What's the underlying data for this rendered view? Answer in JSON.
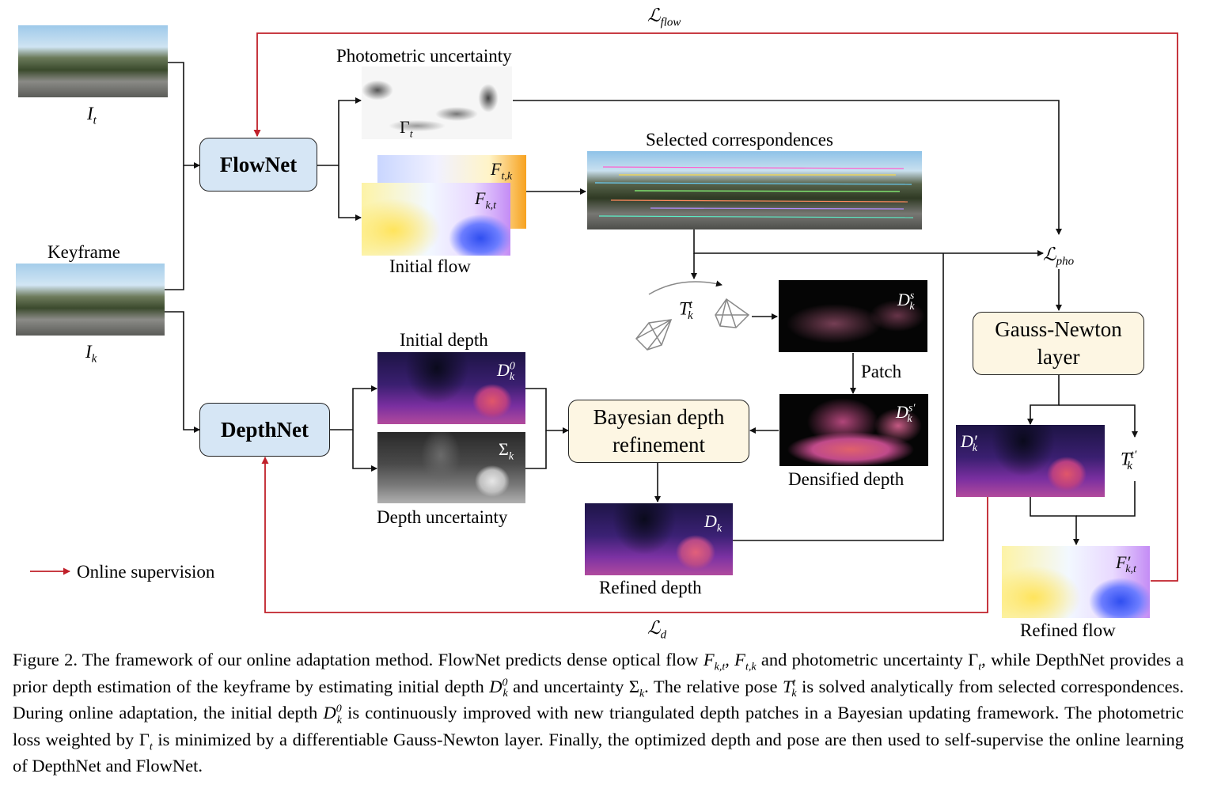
{
  "labels": {
    "it": "I",
    "it_sub": "t",
    "ik": "I",
    "ik_sub": "k",
    "keyframe": "Keyframe",
    "photometric_uncertainty": "Photometric uncertainty",
    "gamma_t": "Γ",
    "gamma_t_sub": "t",
    "selected_correspondences": "Selected correspondences",
    "initial_flow": "Initial flow",
    "f_tk": "F",
    "f_tk_sub": "t,k",
    "f_kt": "F",
    "f_kt_sub": "k,t",
    "initial_depth": "Initial depth",
    "d_k0": "D",
    "d_k0_sup": "0",
    "d_k0_sub": "k",
    "sigma_k": "Σ",
    "sigma_k_sub": "k",
    "depth_uncertainty": "Depth uncertainty",
    "t_kt": "T",
    "t_kt_sup": "t",
    "t_kt_sub": "k",
    "d_ks": "D",
    "d_ks_sup": "s",
    "d_ks_sub": "k",
    "patch": "Patch",
    "d_ks_prime": "D",
    "d_ks_prime_sup": "s′",
    "d_ks_prime_sub": "k",
    "densified_depth": "Densified depth",
    "d_k": "D",
    "d_k_sub": "k",
    "refined_depth": "Refined depth",
    "l_flow": "ℒ",
    "l_flow_sub": "flow",
    "l_pho": "ℒ",
    "l_pho_sub": "pho",
    "l_d": "ℒ",
    "l_d_sub": "d",
    "d_k_prime": "D′",
    "d_k_prime_sub": "k",
    "t_kt_prime": "T",
    "t_kt_prime_sup": "t′",
    "t_kt_prime_sub": "k",
    "f_kt_prime": "F′",
    "f_kt_prime_sub": "k,t",
    "refined_flow": "Refined flow",
    "online_supervision": "Online supervision"
  },
  "boxes": {
    "flownet": "FlowNet",
    "depthnet": "DepthNet",
    "gauss_newton": "Gauss-Newton layer",
    "bayesian": "Bayesian depth refinement"
  },
  "caption": {
    "p1": "Figure 2. The framework of our online adaptation method. FlowNet predicts dense optical flow ",
    "p2": " and photometric uncertainty ",
    "p3": ", while DepthNet provides a prior depth estimation of the keyframe by estimating initial depth ",
    "p4": " and uncertainty ",
    "p5": ". The relative pose ",
    "p6": " is solved analytically from selected correspondences. During online adaptation, the initial depth ",
    "p7": " is continuously improved with new triangulated depth patches in a Bayesian updating framework. The photometric loss weighted by ",
    "p8": " is minimized by a differentiable Gauss-Newton layer. Finally, the optimized depth and pose are then used to self-supervise the online learning of DepthNet and FlowNet."
  },
  "colors": {
    "supervision": "#c0202a",
    "net_fill": "#d6e6f5",
    "layer_fill": "#fdf6e3"
  }
}
